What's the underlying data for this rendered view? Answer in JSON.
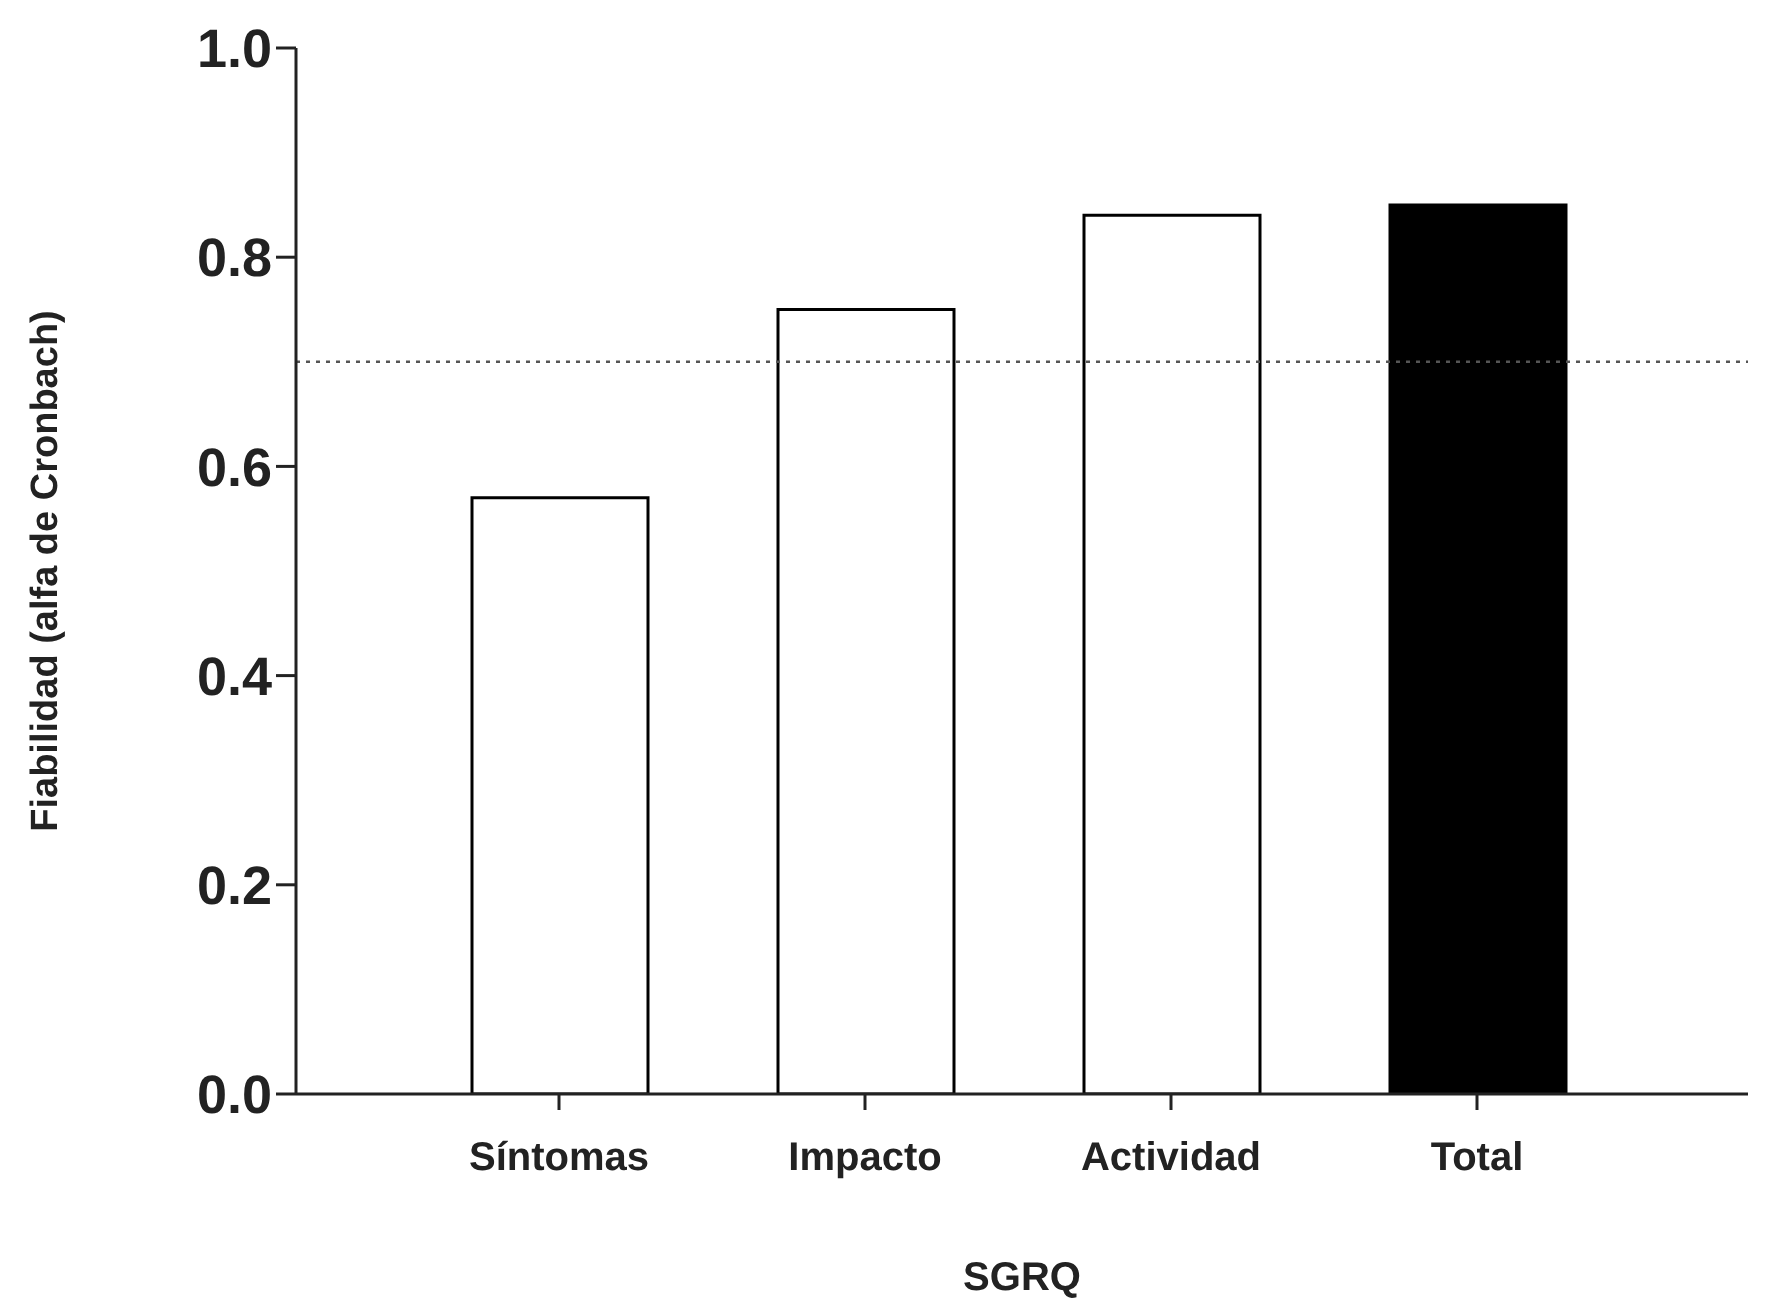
{
  "chart_data": {
    "type": "bar",
    "xlabel": "SGRQ",
    "ylabel": "Fiabilidad (alfa de Cronbach)",
    "categories": [
      "Síntomas",
      "Impacto",
      "Actividad",
      "Total"
    ],
    "values": [
      0.57,
      0.75,
      0.84,
      0.85
    ],
    "colors": [
      "#ffffff",
      "#ffffff",
      "#ffffff",
      "#000000"
    ],
    "ylim": [
      0,
      1
    ],
    "yticks": [
      {
        "value": 0,
        "label": "0.0"
      },
      0.2,
      0.4,
      0.6,
      0.8,
      {
        "value": 1,
        "label": "1.0"
      }
    ],
    "grid": false,
    "legend": false,
    "ref_lines": [
      {
        "axis": "y",
        "value": 0.7,
        "color": "#555555",
        "line_style": "dotted"
      }
    ]
  }
}
